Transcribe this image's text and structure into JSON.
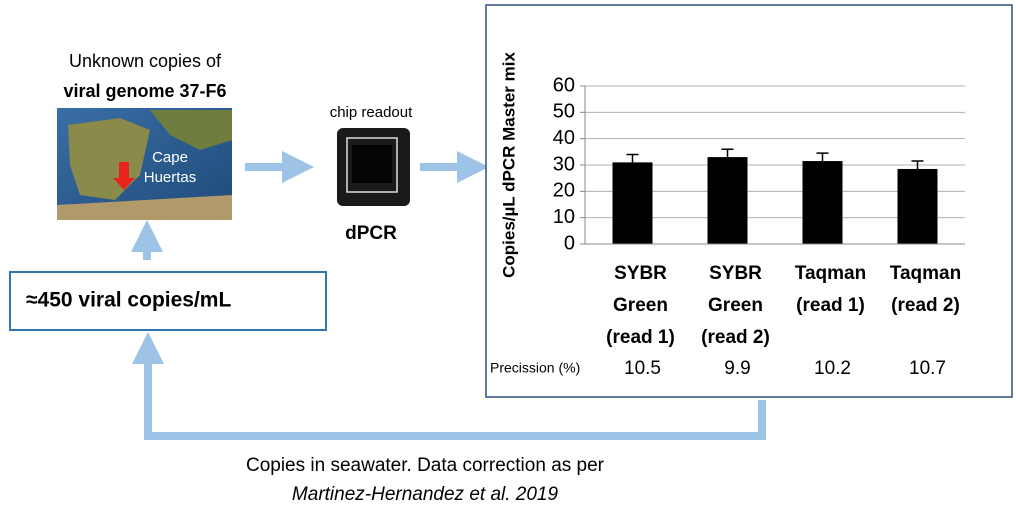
{
  "header": {
    "line1": "Unknown copies of",
    "line2": "viral genome 37-F6"
  },
  "map_label": "Cape Huertas",
  "chip": {
    "caption": "chip readout",
    "label": "dPCR"
  },
  "estimate": "≈450 viral copies/mL",
  "chart_data": {
    "type": "bar",
    "y_label": "Copies/µL dPCR Master mix",
    "categories": [
      "SYBR Green (read 1)",
      "SYBR Green (read 2)",
      "Taqman (read 1)",
      "Taqman (read 2)"
    ],
    "values": [
      31,
      33,
      31.5,
      28.5
    ],
    "errors": [
      3,
      3,
      3,
      3
    ],
    "color": "#000000",
    "ylim": [
      0,
      60
    ],
    "yticks": [
      0,
      10,
      20,
      30,
      40,
      50,
      60
    ],
    "grid": true,
    "precision": {
      "label": "Precission (%)",
      "values": [
        10.5,
        9.9,
        10.2,
        10.7
      ]
    }
  },
  "footer": {
    "line1": "Copies in seawater. Data correction as per",
    "line2": "Martinez-Hernandez et al. 2019"
  }
}
